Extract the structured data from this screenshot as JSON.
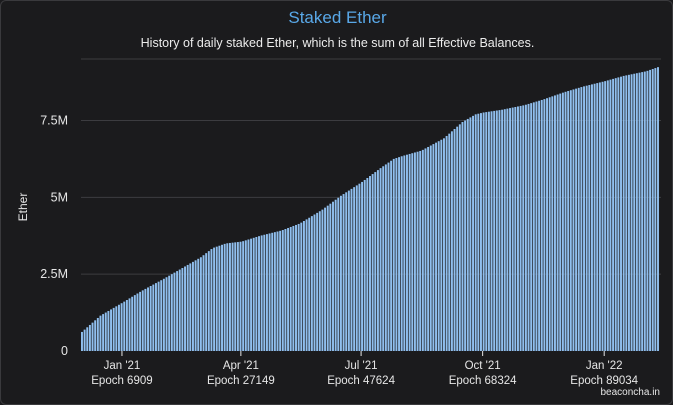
{
  "chart": {
    "title": "Staked Ether",
    "subtitle": "History of daily staked Ether, which is the sum of all Effective Balances.",
    "credit": "beaconcha.in"
  },
  "colors": {
    "bar": "#90bfee",
    "bar_edge": "#1b1b1d",
    "grid": "#3c3c40",
    "title": "#59a8e8",
    "text": "#e6e6e6"
  },
  "chart_data": {
    "type": "bar",
    "ylabel": "Ether",
    "ylim": [
      0,
      9500000
    ],
    "y_ticks": [
      {
        "value": 0,
        "label": "0"
      },
      {
        "value": 2500000,
        "label": "2.5M"
      },
      {
        "value": 5000000,
        "label": "5M"
      },
      {
        "value": 7500000,
        "label": "7.5M"
      }
    ],
    "x_ticks": [
      {
        "date": "2021-01-01",
        "label": "Jan '21",
        "epoch": "Epoch 6909"
      },
      {
        "date": "2021-04-01",
        "label": "Apr '21",
        "epoch": "Epoch 27149"
      },
      {
        "date": "2021-07-01",
        "label": "Jul '21",
        "epoch": "Epoch 47624"
      },
      {
        "date": "2021-10-01",
        "label": "Oct '21",
        "epoch": "Epoch 68324"
      },
      {
        "date": "2022-01-01",
        "label": "Jan '22",
        "epoch": "Epoch 89034"
      }
    ],
    "series": [
      {
        "points": [
          [
            "2020-12-01",
            620000
          ],
          [
            "2020-12-15",
            1150000
          ],
          [
            "2021-01-01",
            1580000
          ],
          [
            "2021-01-15",
            1950000
          ],
          [
            "2021-02-01",
            2350000
          ],
          [
            "2021-02-15",
            2700000
          ],
          [
            "2021-03-01",
            3050000
          ],
          [
            "2021-03-10",
            3350000
          ],
          [
            "2021-03-20",
            3500000
          ],
          [
            "2021-04-01",
            3560000
          ],
          [
            "2021-04-15",
            3750000
          ],
          [
            "2021-05-01",
            3920000
          ],
          [
            "2021-05-15",
            4150000
          ],
          [
            "2021-06-01",
            4600000
          ],
          [
            "2021-06-15",
            5050000
          ],
          [
            "2021-07-01",
            5500000
          ],
          [
            "2021-07-15",
            5950000
          ],
          [
            "2021-07-25",
            6250000
          ],
          [
            "2021-08-01",
            6350000
          ],
          [
            "2021-08-15",
            6520000
          ],
          [
            "2021-09-01",
            6920000
          ],
          [
            "2021-09-15",
            7450000
          ],
          [
            "2021-09-25",
            7700000
          ],
          [
            "2021-10-01",
            7760000
          ],
          [
            "2021-10-15",
            7850000
          ],
          [
            "2021-11-01",
            8000000
          ],
          [
            "2021-11-15",
            8180000
          ],
          [
            "2021-12-01",
            8420000
          ],
          [
            "2021-12-15",
            8600000
          ],
          [
            "2022-01-01",
            8780000
          ],
          [
            "2022-01-15",
            8950000
          ],
          [
            "2022-02-01",
            9100000
          ],
          [
            "2022-02-11",
            9250000
          ]
        ]
      }
    ]
  }
}
